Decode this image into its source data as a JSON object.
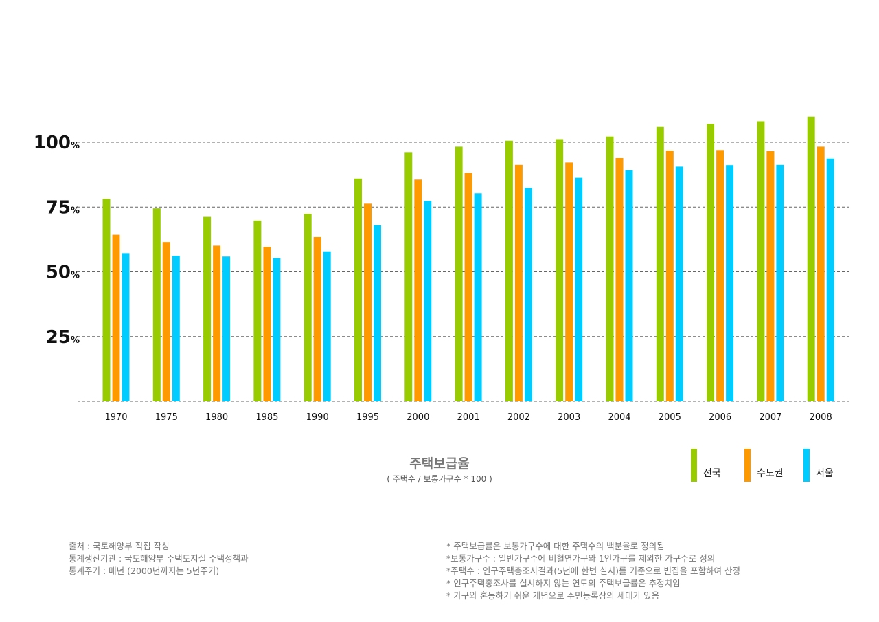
{
  "chart_data": {
    "type": "bar",
    "title": "주택보급율",
    "subtitle": "( 주택수 / 보통가구수 * 100 )",
    "categories": [
      "1970",
      "1975",
      "1980",
      "1985",
      "1990",
      "1995",
      "2000",
      "2001",
      "2002",
      "2003",
      "2004",
      "2005",
      "2006",
      "2007",
      "2008"
    ],
    "series": [
      {
        "name": "전국",
        "color": "#99cc00",
        "values": [
          78.2,
          74.5,
          71.2,
          69.8,
          72.4,
          86.0,
          96.2,
          98.3,
          100.6,
          101.2,
          102.2,
          105.9,
          107.1,
          108.1,
          109.9
        ]
      },
      {
        "name": "수도권",
        "color": "#ff9900",
        "values": [
          64.3,
          61.5,
          60.1,
          59.6,
          63.4,
          76.3,
          85.6,
          88.2,
          91.3,
          92.2,
          93.9,
          96.8,
          97.0,
          96.6,
          98.3
        ]
      },
      {
        "name": "서울",
        "color": "#00ccff",
        "values": [
          57.2,
          56.2,
          55.9,
          55.3,
          57.9,
          68.0,
          77.4,
          80.3,
          82.4,
          86.3,
          89.2,
          90.6,
          91.2,
          91.3,
          93.7
        ]
      }
    ],
    "yticks": [
      {
        "value": 25,
        "num": "25",
        "unit": "%"
      },
      {
        "value": 50,
        "num": "50",
        "unit": "%"
      },
      {
        "value": 75,
        "num": "75",
        "unit": "%"
      },
      {
        "value": 100,
        "num": "100",
        "unit": "%"
      }
    ],
    "ylim": [
      0,
      125
    ],
    "grid": true,
    "legend_position": "bottom-right"
  },
  "notes_left": [
    "출처 : 국토해양부 직접 작성",
    "통계생산기관 : 국토해양부 주택토지실 주택정책과",
    "통계주기 : 매년 (2000년까지는 5년주기)"
  ],
  "notes_right": [
    "* 주택보급률은 보통가구수에 대한 주택수의 백분율로 정의됨",
    "*보통가구수 : 일반가구수에 비혈연가구와 1인가구를 제외한 가구수로 정의",
    "*주택수 : 인구주택총조사결과(5년에 한번 실시)를 기준으로 빈집을 포함하여 산정",
    "* 인구주택총조사를 실시하지 않는 연도의 주택보급률은 추정치임",
    "* 가구와 혼동하기 쉬운 개념으로 주민등록상의 세대가 있음"
  ]
}
